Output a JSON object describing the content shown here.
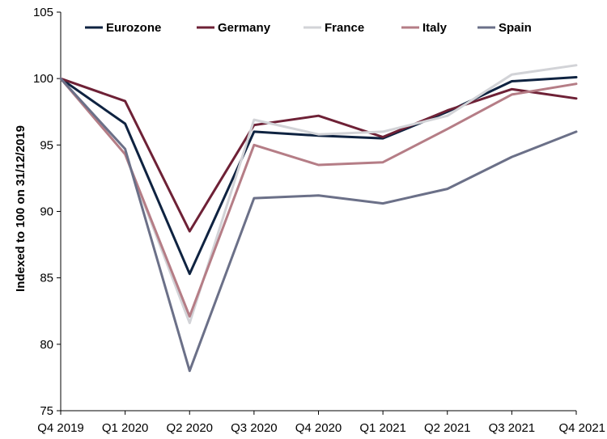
{
  "chart_data": {
    "type": "line",
    "title": "",
    "xlabel": "",
    "ylabel": "Indexed to 100 on 31/12/2019",
    "categories": [
      "Q4 2019",
      "Q1 2020",
      "Q2 2020",
      "Q3 2020",
      "Q4 2020",
      "Q1 2021",
      "Q2 2021",
      "Q3 2021",
      "Q4 2021"
    ],
    "ylim": [
      75,
      105
    ],
    "yticks": [
      75,
      80,
      85,
      90,
      95,
      100,
      105
    ],
    "grid": false,
    "legend_position": "top",
    "series": [
      {
        "name": "Eurozone",
        "color": "#0f2341",
        "values": [
          100,
          96.6,
          85.3,
          96.0,
          95.7,
          95.5,
          97.5,
          99.8,
          100.1
        ]
      },
      {
        "name": "Germany",
        "color": "#6e2136",
        "values": [
          100,
          98.3,
          88.5,
          96.5,
          97.2,
          95.6,
          97.6,
          99.2,
          98.5
        ]
      },
      {
        "name": "France",
        "color": "#d2d3d7",
        "values": [
          100,
          94.3,
          81.6,
          96.9,
          95.8,
          96.0,
          97.2,
          100.3,
          101.0
        ]
      },
      {
        "name": "Italy",
        "color": "#b57d86",
        "values": [
          100,
          94.3,
          82.1,
          95.0,
          93.5,
          93.7,
          96.2,
          98.8,
          99.6
        ]
      },
      {
        "name": "Spain",
        "color": "#6b7088",
        "values": [
          100,
          94.7,
          78.0,
          91.0,
          91.2,
          90.6,
          91.7,
          94.1,
          96.0
        ]
      }
    ]
  }
}
